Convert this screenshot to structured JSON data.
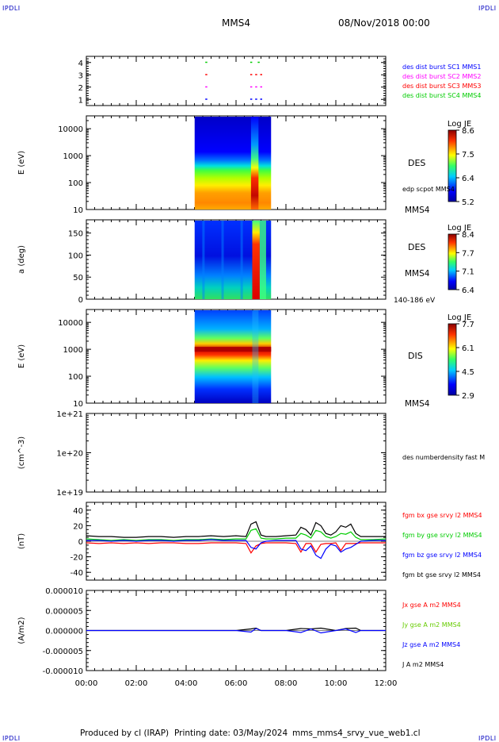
{
  "header": {
    "corner_label": "IPDLI",
    "spacecraft": "MMS4",
    "date_time": "08/Nov/2018 00:00"
  },
  "footer": {
    "produced_by": "Produced by cl (IRAP)",
    "printing_date": "Printing date: 03/May/2024",
    "script_name": "mms_mms4_srvy_vue_web1.cl"
  },
  "time_axis": {
    "ticks": [
      "00:00",
      "02:00",
      "04:00",
      "06:00",
      "08:00",
      "10:00",
      "12:00"
    ],
    "hours": [
      0,
      2,
      4,
      6,
      8,
      10,
      12
    ]
  },
  "chart_data": [
    {
      "type": "scatter",
      "name_key": "burst_availability",
      "ylabel": "",
      "ylim": [
        0.5,
        4.5
      ],
      "y_ticks": [
        "1",
        "2",
        "3",
        "4"
      ],
      "legend": [
        {
          "label": "des dist burst SC1 MMS1",
          "color": "#0000ff"
        },
        {
          "label": "des dist burst SC2 MMS2",
          "color": "#ff00ff"
        },
        {
          "label": "des dist burst SC3 MMS3",
          "color": "#ff0000"
        },
        {
          "label": "des dist burst SC4 MMS4",
          "color": "#00cc00"
        }
      ],
      "series": [
        {
          "sc": 4,
          "color": "#00cc00",
          "x": [
            4.8,
            6.6,
            6.9
          ]
        },
        {
          "sc": 3,
          "color": "#ff0000",
          "x": [
            4.8,
            6.6,
            6.8,
            7.0
          ]
        },
        {
          "sc": 2,
          "color": "#ff00ff",
          "x": [
            4.8,
            6.6,
            6.8,
            7.0
          ]
        },
        {
          "sc": 1,
          "color": "#0000ff",
          "x": [
            4.8,
            6.6,
            6.8,
            7.0
          ]
        }
      ]
    },
    {
      "type": "heatmap",
      "name_key": "des_energy_spectrogram",
      "ylabel": "E (eV)",
      "y_scale": "log",
      "ylim": [
        10,
        30000
      ],
      "y_ticks": [
        "10",
        "100",
        "1000",
        "10000"
      ],
      "x_range_hours": [
        4.5,
        7.5
      ],
      "burst_hours": [
        6.6,
        6.9
      ],
      "species": "DES",
      "side_labels": [
        "edp scpot MMS4",
        "MMS4"
      ],
      "colorbar": {
        "title": "Log JE",
        "ticks": [
          "8.6",
          "7.5",
          "6.4",
          "5.2"
        ]
      }
    },
    {
      "type": "heatmap",
      "name_key": "des_pitch_angle",
      "ylabel": "a (deg)",
      "ylim": [
        0,
        180
      ],
      "y_ticks": [
        "0",
        "50",
        "100",
        "150"
      ],
      "x_range_hours": [
        4.5,
        7.5
      ],
      "burst_hours": [
        6.65,
        6.95
      ],
      "species": "DES",
      "side_labels": [
        "MMS4",
        "140-186 eV"
      ],
      "colorbar": {
        "title": "Log JE",
        "ticks": [
          "8.4",
          "7.7",
          "7.1",
          "6.4"
        ]
      }
    },
    {
      "type": "heatmap",
      "name_key": "dis_energy_spectrogram",
      "ylabel": "E (eV)",
      "y_scale": "log",
      "ylim": [
        10,
        30000
      ],
      "y_ticks": [
        "10",
        "100",
        "1000",
        "10000"
      ],
      "x_range_hours": [
        4.5,
        7.5
      ],
      "peak_energy_ev": 1000,
      "species": "DIS",
      "side_labels": [
        "MMS4"
      ],
      "colorbar": {
        "title": "Log JE",
        "ticks": [
          "7.7",
          "6.1",
          "4.5",
          "2.9"
        ]
      }
    },
    {
      "type": "line",
      "name_key": "number_density",
      "ylabel": "(cm^-3)",
      "y_scale": "log",
      "ylim": [
        1e+19,
        1e+21
      ],
      "y_ticks": [
        "1e+19",
        "1e+20",
        "1e+21"
      ],
      "legend": [
        {
          "label": "des numberdensity fast M",
          "color": "#000000"
        }
      ],
      "series": []
    },
    {
      "type": "line",
      "name_key": "magnetic_field",
      "ylabel": "(nT)",
      "ylim": [
        -50,
        50
      ],
      "y_ticks": [
        "-40",
        "-20",
        "0",
        "20",
        "40"
      ],
      "legend": [
        {
          "label": "fgm bx gse srvy l2 MMS4",
          "color": "#ff0000"
        },
        {
          "label": "fgm by gse srvy l2 MMS4",
          "color": "#00cc00"
        },
        {
          "label": "fgm bz gse srvy l2 MMS4",
          "color": "#0000ff"
        },
        {
          "label": "fgm bt gse srvy l2 MMS4",
          "color": "#000000"
        }
      ],
      "series": [
        {
          "color": "#000000",
          "x": [
            0,
            0.5,
            1,
            1.5,
            2,
            2.5,
            3,
            3.5,
            4,
            4.5,
            5,
            5.5,
            6,
            6.4,
            6.6,
            6.8,
            7.0,
            7.2,
            7.6,
            8,
            8.4,
            8.6,
            8.8,
            9.0,
            9.2,
            9.4,
            9.6,
            9.8,
            10,
            10.2,
            10.4,
            10.6,
            10.8,
            11,
            11.5,
            12
          ],
          "y": [
            7,
            6,
            6,
            5,
            5,
            6,
            6,
            5,
            6,
            6,
            7,
            6,
            7,
            6,
            22,
            25,
            8,
            6,
            6,
            7,
            8,
            18,
            15,
            8,
            24,
            20,
            10,
            8,
            12,
            20,
            18,
            22,
            10,
            6,
            6,
            6
          ]
        },
        {
          "color": "#00cc00",
          "x": [
            0,
            0.5,
            1,
            1.5,
            2,
            2.5,
            3,
            3.5,
            4,
            4.5,
            5,
            5.5,
            6,
            6.4,
            6.6,
            6.8,
            7.0,
            7.2,
            7.6,
            8,
            8.4,
            8.6,
            8.8,
            9.0,
            9.2,
            9.4,
            9.6,
            9.8,
            10,
            10.2,
            10.4,
            10.6,
            10.8,
            11,
            11.5,
            12
          ],
          "y": [
            3,
            2,
            1,
            2,
            1,
            2,
            2,
            1,
            2,
            2,
            3,
            2,
            3,
            3,
            14,
            16,
            4,
            3,
            3,
            4,
            4,
            10,
            8,
            4,
            14,
            12,
            6,
            4,
            6,
            10,
            9,
            12,
            5,
            2,
            2,
            3
          ]
        },
        {
          "color": "#ff0000",
          "x": [
            0,
            0.5,
            1,
            1.5,
            2,
            2.5,
            3,
            3.5,
            4,
            4.5,
            5,
            5.5,
            6,
            6.4,
            6.6,
            6.8,
            7.0,
            7.2,
            7.6,
            8,
            8.4,
            8.6,
            8.8,
            9.0,
            9.2,
            9.4,
            9.6,
            9.8,
            10,
            10.2,
            10.4,
            10.6,
            10.8,
            11,
            11.5,
            12
          ],
          "y": [
            -2,
            -3,
            -2,
            -3,
            -2,
            -3,
            -2,
            -2,
            -3,
            -3,
            -2,
            -2,
            -2,
            -3,
            -15,
            -6,
            -3,
            -2,
            -2,
            -2,
            -3,
            -14,
            -3,
            -3,
            -14,
            -4,
            -3,
            -3,
            -2,
            -12,
            -3,
            -3,
            -3,
            -2,
            -2,
            -2
          ]
        },
        {
          "color": "#0000ff",
          "x": [
            0,
            0.5,
            1,
            1.5,
            2,
            2.5,
            3,
            3.5,
            4,
            4.5,
            5,
            5.5,
            6,
            6.4,
            6.6,
            6.8,
            7.0,
            7.2,
            7.6,
            8,
            8.4,
            8.6,
            8.8,
            9.0,
            9.2,
            9.4,
            9.6,
            9.8,
            10,
            10.2,
            10.4,
            10.6,
            10.8,
            11,
            11.5,
            12
          ],
          "y": [
            1,
            1,
            0,
            1,
            0,
            1,
            1,
            0,
            1,
            1,
            2,
            1,
            1,
            1,
            -8,
            -10,
            -2,
            0,
            1,
            1,
            1,
            -10,
            -12,
            -6,
            -18,
            -22,
            -10,
            -4,
            -6,
            -14,
            -10,
            -8,
            -4,
            0,
            1,
            1
          ]
        }
      ]
    },
    {
      "type": "line",
      "name_key": "current_density",
      "ylabel": "(A/m2)",
      "ylim": [
        -1e-05,
        1e-05
      ],
      "y_ticks": [
        "-0.000010",
        "-0.000005",
        "0.000000",
        "0.000005",
        "0.000010"
      ],
      "legend": [
        {
          "label": "Jx gse A m2 MMS4",
          "color": "#ff0000"
        },
        {
          "label": "Jy gse A m2 MMS4",
          "color": "#66cc00"
        },
        {
          "label": "Jz gse A m2 MMS4",
          "color": "#0000ff"
        },
        {
          "label": "J A m2 MMS4",
          "color": "#000000"
        }
      ],
      "series": [
        {
          "color": "#000000",
          "x": [
            0,
            2,
            4,
            6,
            6.6,
            6.8,
            7,
            8,
            8.6,
            9,
            9.4,
            10,
            10.4,
            10.8,
            11,
            12
          ],
          "y": [
            0,
            0,
            0,
            0,
            4e-07,
            6e-07,
            0,
            0,
            5e-07,
            4e-07,
            6e-07,
            0,
            5e-07,
            6e-07,
            0,
            0
          ]
        },
        {
          "color": "#0000ff",
          "x": [
            0,
            2,
            4,
            6,
            6.6,
            6.8,
            7,
            8,
            8.6,
            9,
            9.4,
            10,
            10.4,
            10.8,
            11,
            12
          ],
          "y": [
            0,
            0,
            0,
            0,
            -4e-07,
            5e-07,
            0,
            0,
            -5e-07,
            4e-07,
            -6e-07,
            0,
            4e-07,
            -5e-07,
            0,
            0
          ]
        }
      ]
    }
  ]
}
